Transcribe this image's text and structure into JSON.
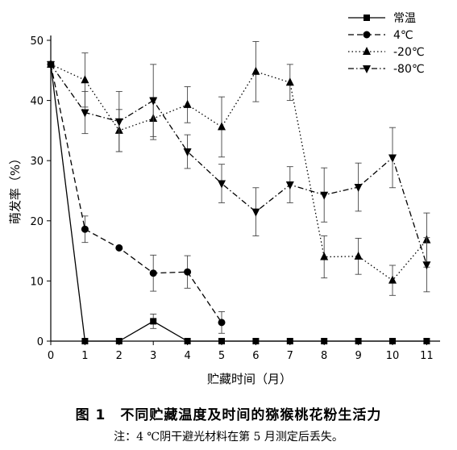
{
  "chart_data": {
    "type": "line",
    "xlabel": "贮藏时间（月）",
    "ylabel": "萌发率（%）",
    "xlim": [
      0,
      11
    ],
    "ylim": [
      0,
      50
    ],
    "x_ticks": [
      "0",
      "1",
      "2",
      "3",
      "4",
      "5",
      "6",
      "7",
      "8",
      "9",
      "10",
      "11"
    ],
    "y_ticks": [
      "0",
      "10",
      "20",
      "30",
      "40",
      "50"
    ],
    "grid": false,
    "legend_position": "top-right",
    "series": [
      {
        "name": "常温",
        "marker": "square",
        "linestyle": "solid",
        "x": [
          0,
          1,
          2,
          3,
          4,
          5,
          6,
          7,
          8,
          9,
          10,
          11
        ],
        "y": [
          46,
          0,
          0,
          3.3,
          0,
          0,
          0,
          0,
          0,
          0,
          0,
          0
        ],
        "err": [
          0,
          0,
          0,
          1.2,
          0,
          0,
          0,
          0,
          0,
          0,
          0,
          0
        ]
      },
      {
        "name": "4℃",
        "marker": "circle",
        "linestyle": "dashed",
        "x": [
          0,
          1,
          2,
          3,
          4,
          5
        ],
        "y": [
          46,
          18.6,
          15.5,
          11.3,
          11.5,
          3.1
        ],
        "err": [
          0,
          2.2,
          0,
          3,
          2.7,
          1.8
        ]
      },
      {
        "name": "-20℃",
        "marker": "triangle-up",
        "linestyle": "dotted",
        "x": [
          0,
          1,
          2,
          3,
          4,
          5,
          6,
          7,
          8,
          9,
          10,
          11
        ],
        "y": [
          46,
          43.4,
          35,
          37,
          39.3,
          35.6,
          44.8,
          43,
          14,
          14.1,
          10.1,
          16.8
        ],
        "err": [
          0,
          4.5,
          3.5,
          3.5,
          3,
          5,
          5,
          3,
          3.5,
          3,
          2.5,
          4.5
        ]
      },
      {
        "name": "-80℃",
        "marker": "triangle-down",
        "linestyle": "dashdot",
        "x": [
          0,
          1,
          2,
          3,
          4,
          5,
          6,
          7,
          8,
          9,
          10,
          11
        ],
        "y": [
          46,
          38,
          36.5,
          40,
          31.5,
          26.2,
          21.5,
          26,
          24.3,
          25.6,
          30.5,
          12.7
        ],
        "err": [
          0,
          3.5,
          5,
          6,
          2.8,
          3.2,
          4,
          3,
          4.5,
          4,
          5,
          4.5
        ]
      }
    ]
  },
  "caption": {
    "title": "图 1　不同贮藏温度及时间的猕猴桃花粉生活力",
    "note": "注：4 ℃阴干避光材料在第 5 月测定后丢失。"
  }
}
